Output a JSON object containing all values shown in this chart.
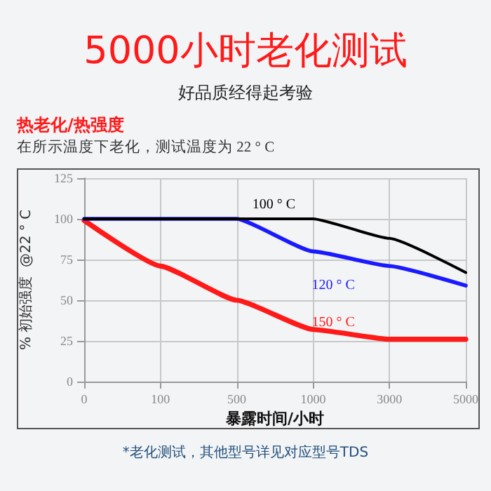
{
  "chart_data": {
    "type": "line",
    "title": "5000小时老化测试",
    "subtitle": "好品质经得起考验",
    "annotations": [
      "热老化/热强度",
      "在所示温度下老化，测试温度为 22 ° C",
      "*老化测试，其他型号详见对应型号TDS"
    ],
    "xlabel": "暴露时间/小时",
    "ylabel": "% 初始强度  @22 ° C",
    "categories": [
      "0",
      "100",
      "500",
      "1000",
      "3000",
      "5000"
    ],
    "series": [
      {
        "name": "100 ° C",
        "color": "#000000",
        "values": [
          100,
          100,
          100,
          100,
          88,
          67
        ]
      },
      {
        "name": "120 ° C",
        "color": "#1a1aff",
        "values": [
          100,
          100,
          100,
          80,
          71,
          59
        ]
      },
      {
        "name": "150 ° C",
        "color": "#ff1a1a",
        "values": [
          99,
          71,
          50,
          32,
          26,
          26
        ]
      }
    ],
    "ylim": [
      0,
      125
    ],
    "yticks": [
      0,
      25,
      50,
      75,
      100,
      125
    ],
    "grid": true,
    "legend": false,
    "marker": "none",
    "line_style": "solid"
  }
}
